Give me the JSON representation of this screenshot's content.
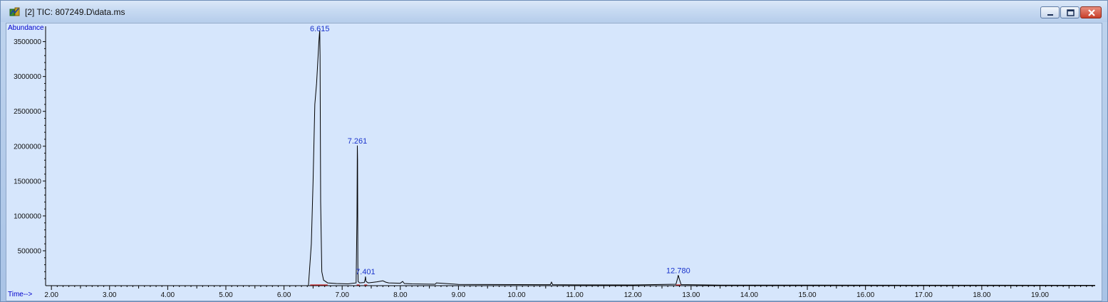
{
  "window": {
    "title": "[2] TIC: 807249.D\\data.ms"
  },
  "colors": {
    "plot_background": "#d6e6fc",
    "trace": "#000000",
    "baseline": "#cc2222",
    "label": "#1a33cc"
  },
  "icons": [
    "app-icon",
    "minimize-icon",
    "maximize-icon",
    "close-icon"
  ],
  "chart_data": {
    "type": "line",
    "ylabel": "Abundance",
    "xlabel": "Time-->",
    "xlim": [
      1.9,
      19.95
    ],
    "ylim": [
      0,
      3720000
    ],
    "y_ticks": [
      500000,
      1000000,
      1500000,
      2000000,
      2500000,
      3000000,
      3500000
    ],
    "y_tick_labels": [
      "500000",
      "1000000",
      "1500000",
      "2000000",
      "2500000",
      "3000000",
      "3500000"
    ],
    "x_ticks": [
      2,
      3,
      4,
      5,
      6,
      7,
      8,
      9,
      10,
      11,
      12,
      13,
      14,
      15,
      16,
      17,
      18,
      19
    ],
    "x_tick_labels": [
      "2.00",
      "3.00",
      "4.00",
      "5.00",
      "6.00",
      "7.00",
      "8.00",
      "9.00",
      "10.00",
      "11.00",
      "12.00",
      "13.00",
      "14.00",
      "15.00",
      "16.00",
      "17.00",
      "18.00",
      "19.00"
    ],
    "grid": false,
    "series": [
      {
        "x": [
          1.9,
          6.42,
          6.47,
          6.5,
          6.53,
          6.56,
          6.58,
          6.6,
          6.61,
          6.615,
          6.62,
          6.63,
          6.65,
          6.68,
          6.75,
          6.9,
          7.1,
          7.24,
          7.255,
          7.261,
          7.265,
          7.27,
          7.275,
          7.3,
          7.38,
          7.395,
          7.401,
          7.41,
          7.45,
          7.6,
          7.7,
          7.75,
          7.8,
          8.0,
          8.04,
          8.07,
          8.2,
          8.6,
          8.62,
          9.0,
          10.0,
          10.58,
          10.6,
          10.62,
          11.0,
          12.0,
          12.74,
          12.77,
          12.78,
          12.8,
          12.83,
          13.5,
          19.95
        ],
        "y": [
          0,
          0,
          600000,
          1500000,
          2600000,
          2900000,
          3200000,
          3500000,
          3620000,
          3660000,
          3300000,
          1200000,
          200000,
          80000,
          40000,
          30000,
          25000,
          40000,
          1000000,
          2010000,
          1800000,
          300000,
          60000,
          40000,
          45000,
          90000,
          130000,
          60000,
          40000,
          55000,
          70000,
          50000,
          40000,
          35000,
          60000,
          30000,
          25000,
          20000,
          40000,
          18000,
          15000,
          14000,
          50000,
          14000,
          12000,
          10000,
          20000,
          110000,
          150000,
          90000,
          15000,
          8000,
          5000
        ]
      }
    ],
    "peak_labels": [
      {
        "x": 6.615,
        "y": 3660000,
        "text": "6.615"
      },
      {
        "x": 7.261,
        "y": 2010000,
        "text": "7.261"
      },
      {
        "x": 7.401,
        "y": 130000,
        "text": "7.401"
      },
      {
        "x": 12.78,
        "y": 150000,
        "text": "12.780"
      }
    ],
    "baseline_segments": [
      {
        "x": [
          6.45,
          6.75
        ],
        "y": [
          0,
          0
        ]
      },
      {
        "x": [
          7.25,
          7.3
        ],
        "y": [
          0,
          0
        ]
      },
      {
        "x": [
          7.38,
          7.43
        ],
        "y": [
          0,
          0
        ]
      },
      {
        "x": [
          12.74,
          12.82
        ],
        "y": [
          0,
          0
        ]
      }
    ]
  }
}
